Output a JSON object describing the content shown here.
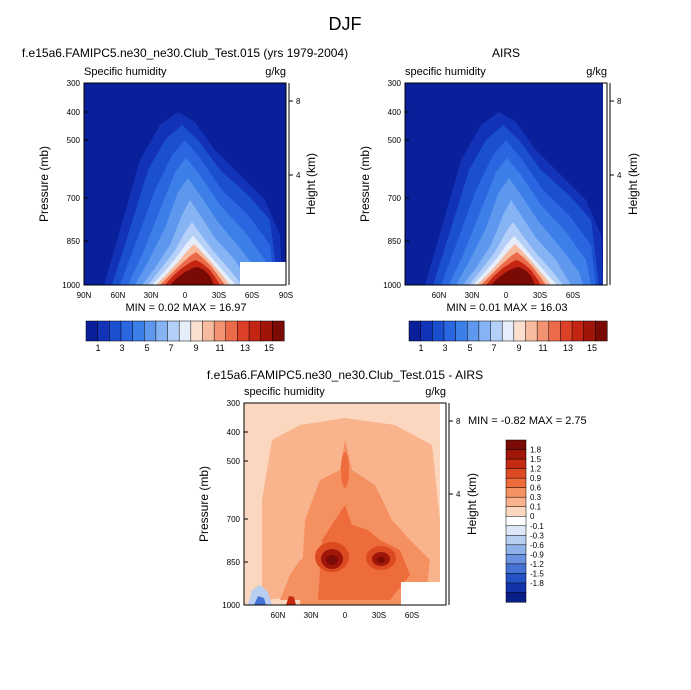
{
  "figure": {
    "title": "DJF"
  },
  "chart_data": [
    {
      "type": "heatmap",
      "title": "f.e15a6.FAMIPC5.ne30_ne30.Club_Test.015 (yrs 1979-2004)",
      "left_subtitle": "Specific humidity",
      "right_subtitle": "g/kg",
      "ylabel": "Pressure (mb)",
      "y2label": "Height (km)",
      "x_ticks": [
        "90N",
        "60N",
        "30N",
        "0",
        "30S",
        "60S",
        "90S"
      ],
      "y_ticks": [
        "300",
        "400",
        "500",
        "700",
        "850",
        "1000"
      ],
      "y2_ticks": [
        "8",
        "4"
      ],
      "stats": "MIN =  0.02  MAX = 16.97",
      "colorbar_labels": [
        "1",
        "3",
        "5",
        "7",
        "9",
        "11",
        "13",
        "15"
      ]
    },
    {
      "type": "heatmap",
      "title": "AIRS",
      "left_subtitle": "specific humidity",
      "right_subtitle": "g/kg",
      "ylabel": "Pressure (mb)",
      "y2label": "Height (km)",
      "x_ticks": [
        "60N",
        "30N",
        "0",
        "30S",
        "60S"
      ],
      "y_ticks": [
        "300",
        "400",
        "500",
        "700",
        "850",
        "1000"
      ],
      "y2_ticks": [
        "8",
        "4"
      ],
      "stats": "MIN =  0.01  MAX = 16.03",
      "colorbar_labels": [
        "1",
        "3",
        "5",
        "7",
        "9",
        "11",
        "13",
        "15"
      ]
    },
    {
      "type": "heatmap",
      "title": "f.e15a6.FAMIPC5.ne30_ne30.Club_Test.015 - AIRS",
      "left_subtitle": "specific humidity",
      "right_subtitle": "g/kg",
      "ylabel": "Pressure (mb)",
      "y2label": "Height (km)",
      "x_ticks": [
        "60N",
        "30N",
        "0",
        "30S",
        "60S"
      ],
      "y_ticks": [
        "300",
        "400",
        "500",
        "700",
        "850",
        "1000"
      ],
      "y2_ticks": [
        "8",
        "4"
      ],
      "stats": "MIN = -0.82  MAX =  2.75",
      "colorbar_labels": [
        "1.8",
        "1.5",
        "1.2",
        "0.9",
        "0.6",
        "0.3",
        "0.1",
        "0",
        "-0.1",
        "-0.3",
        "-0.6",
        "-0.9",
        "-1.2",
        "-1.5",
        "-1.8"
      ]
    }
  ],
  "colors": {
    "abs_scale": [
      "#0a1f9a",
      "#1233b8",
      "#1a4fd0",
      "#2a66e0",
      "#3d7fe8",
      "#5d98ee",
      "#86b3f3",
      "#b5d0f8",
      "#e6eefb",
      "#fbe0d0",
      "#f7bca0",
      "#f29272",
      "#ea6a4a",
      "#dc4128",
      "#c42512",
      "#a0140a",
      "#7a0a04"
    ],
    "diff_scale": [
      "#7a0a04",
      "#a01608",
      "#c42a10",
      "#dc4a22",
      "#ee6c3c",
      "#f59060",
      "#f9b48e",
      "#fcd7bf",
      "#ffffff",
      "#dce8f8",
      "#b8cff2",
      "#90b2ea",
      "#6a92e0",
      "#4672d4",
      "#2452c4",
      "#1234a8",
      "#081f88"
    ]
  }
}
